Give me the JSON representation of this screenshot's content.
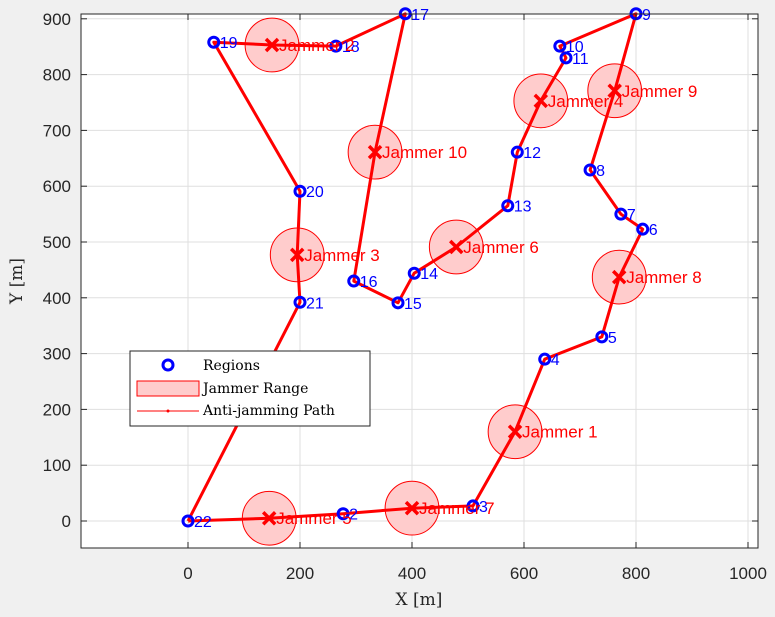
{
  "chart_data": {
    "type": "scatter",
    "title": "",
    "xlabel": "X [m]",
    "ylabel": "Y [m]",
    "xlim": [
      -190,
      1020
    ],
    "ylim": [
      -48,
      912
    ],
    "grid": true,
    "x_ticks": [
      0,
      200,
      400,
      600,
      800,
      1000
    ],
    "y_ticks": [
      0,
      100,
      200,
      300,
      400,
      500,
      600,
      700,
      800,
      900
    ],
    "legend": {
      "position": "lower-left-inside",
      "entries": [
        "Regions",
        "Jammer Range",
        "Anti-jamming Path"
      ]
    },
    "colors": {
      "regions": "#0000ff",
      "jammer_fill": "#ffcccc",
      "jammer_edge": "#ff0000",
      "path": "#ff0000"
    },
    "jammer_radius": 48,
    "regions": [
      {
        "id": "2",
        "x": 277,
        "y": 13
      },
      {
        "id": "3",
        "x": 509,
        "y": 27
      },
      {
        "id": "4",
        "x": 637,
        "y": 290
      },
      {
        "id": "5",
        "x": 739,
        "y": 330
      },
      {
        "id": "6",
        "x": 812,
        "y": 523
      },
      {
        "id": "7",
        "x": 773,
        "y": 550
      },
      {
        "id": "8",
        "x": 718,
        "y": 629
      },
      {
        "id": "9",
        "x": 800,
        "y": 909
      },
      {
        "id": "10",
        "x": 664,
        "y": 851
      },
      {
        "id": "11",
        "x": 675,
        "y": 830
      },
      {
        "id": "12",
        "x": 588,
        "y": 661
      },
      {
        "id": "13",
        "x": 571,
        "y": 565
      },
      {
        "id": "14",
        "x": 404,
        "y": 444
      },
      {
        "id": "15",
        "x": 375,
        "y": 391
      },
      {
        "id": "16",
        "x": 296,
        "y": 430
      },
      {
        "id": "17",
        "x": 388,
        "y": 909
      },
      {
        "id": "18",
        "x": 264,
        "y": 851
      },
      {
        "id": "19",
        "x": 46,
        "y": 858
      },
      {
        "id": "20",
        "x": 200,
        "y": 591
      },
      {
        "id": "21",
        "x": 200,
        "y": 392
      },
      {
        "id": "22",
        "x": 0,
        "y": 0
      }
    ],
    "jammers": [
      {
        "label": "Jammer 1",
        "x": 584,
        "y": 160
      },
      {
        "label": "Jammer 2",
        "x": 150,
        "y": 853
      },
      {
        "label": "Jammer 3",
        "x": 195,
        "y": 477
      },
      {
        "label": "Jammer 4",
        "x": 630,
        "y": 753
      },
      {
        "label": "Jammer 5",
        "x": 145,
        "y": 5
      },
      {
        "label": "Jammer 6",
        "x": 479,
        "y": 491
      },
      {
        "label": "Jammer 7",
        "x": 400,
        "y": 23
      },
      {
        "label": "Jammer 8",
        "x": 770,
        "y": 437
      },
      {
        "label": "Jammer 9",
        "x": 762,
        "y": 771
      },
      {
        "label": "Jammer 10",
        "x": 334,
        "y": 661
      }
    ],
    "path_order": [
      "22",
      "J5",
      "2",
      "J7",
      "3",
      "J1",
      "4",
      "5",
      "J8",
      "6",
      "7",
      "8",
      "J9",
      "9",
      "10",
      "11",
      "J4",
      "12",
      "13",
      "J6",
      "14",
      "15",
      "16",
      "J10",
      "17",
      "18",
      "J2",
      "19",
      "20",
      "J3",
      "21",
      "22"
    ]
  }
}
